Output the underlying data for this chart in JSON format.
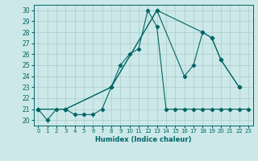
{
  "xlabel": "Humidex (Indice chaleur)",
  "ylabel": "",
  "bg_color": "#cce8e8",
  "grid_color": "#aacccc",
  "line_color": "#006666",
  "xlim": [
    -0.5,
    23.5
  ],
  "ylim": [
    19.5,
    30.5
  ],
  "xticks": [
    0,
    1,
    2,
    3,
    4,
    5,
    6,
    7,
    8,
    9,
    10,
    11,
    12,
    13,
    14,
    15,
    16,
    17,
    18,
    19,
    20,
    21,
    22,
    23
  ],
  "yticks": [
    20,
    21,
    22,
    23,
    24,
    25,
    26,
    27,
    28,
    29,
    30
  ],
  "series": [
    {
      "x": [
        0,
        1,
        2,
        3,
        4,
        5,
        6,
        7,
        8,
        9,
        10,
        11,
        12,
        13,
        14,
        15,
        16,
        17,
        18,
        19,
        20,
        21,
        22,
        23
      ],
      "y": [
        21,
        20,
        21,
        21,
        20.5,
        20.5,
        20.5,
        21,
        23,
        25,
        26,
        26.5,
        30,
        28.5,
        21,
        21,
        21,
        21,
        21,
        21,
        21,
        21,
        21,
        21
      ]
    },
    {
      "x": [
        0,
        3,
        8,
        13,
        18,
        19,
        20,
        22
      ],
      "y": [
        21,
        21,
        23,
        30,
        28,
        27.5,
        25.5,
        23
      ]
    },
    {
      "x": [
        0,
        3,
        8,
        13,
        16,
        17,
        18,
        19,
        20,
        22
      ],
      "y": [
        21,
        21,
        23,
        30,
        24,
        25,
        28,
        27.5,
        25.5,
        23
      ]
    }
  ]
}
